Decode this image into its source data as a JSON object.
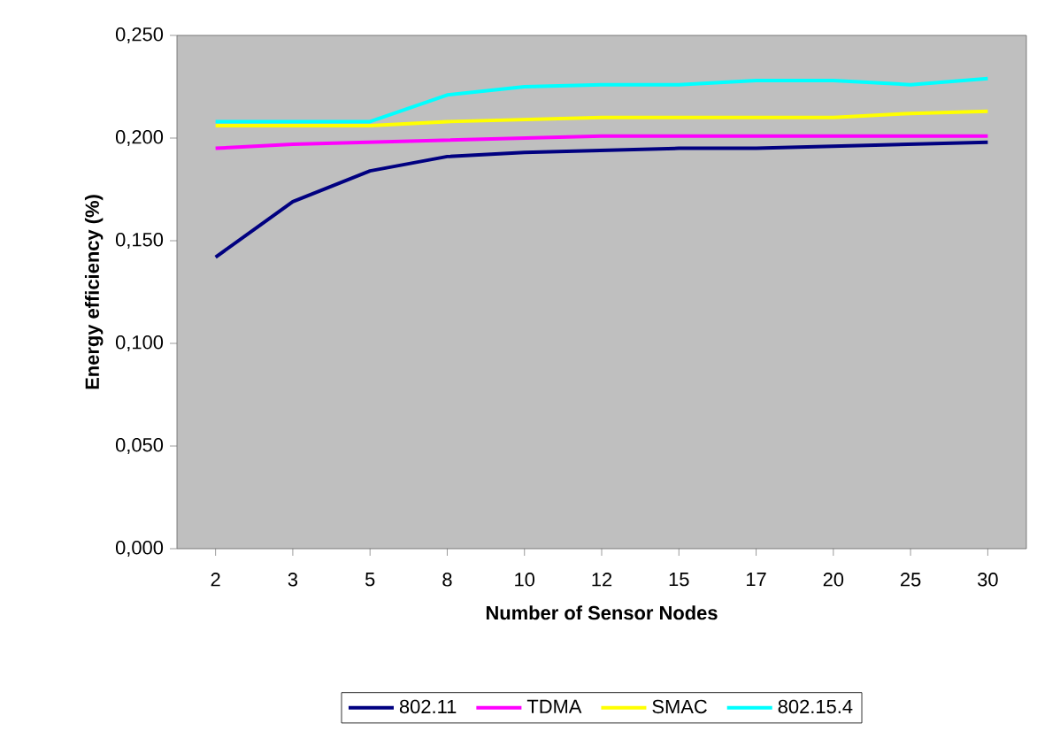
{
  "chart_data": {
    "type": "line",
    "xlabel": "Number of Sensor Nodes",
    "ylabel": "Energy efficiency (%)",
    "categories": [
      "2",
      "3",
      "5",
      "8",
      "10",
      "12",
      "15",
      "17",
      "20",
      "25",
      "30"
    ],
    "series": [
      {
        "name": "802.11",
        "color": "#000080",
        "values": [
          0.142,
          0.169,
          0.184,
          0.191,
          0.193,
          0.194,
          0.195,
          0.195,
          0.196,
          0.197,
          0.198
        ]
      },
      {
        "name": "TDMA",
        "color": "#ff00ff",
        "values": [
          0.195,
          0.197,
          0.198,
          0.199,
          0.2,
          0.201,
          0.201,
          0.201,
          0.201,
          0.201,
          0.201
        ]
      },
      {
        "name": "SMAC",
        "color": "#ffff00",
        "values": [
          0.206,
          0.206,
          0.206,
          0.208,
          0.209,
          0.21,
          0.21,
          0.21,
          0.21,
          0.212,
          0.213
        ]
      },
      {
        "name": "802.15.4",
        "color": "#00ffff",
        "values": [
          0.208,
          0.208,
          0.208,
          0.221,
          0.225,
          0.226,
          0.226,
          0.228,
          0.228,
          0.226,
          0.229
        ]
      }
    ],
    "ylim": [
      0,
      0.25
    ],
    "yticks": [
      {
        "value": 0,
        "label": "0,000"
      },
      {
        "value": 0.05,
        "label": "0,050"
      },
      {
        "value": 0.1,
        "label": "0,100"
      },
      {
        "value": 0.15,
        "label": "0,150"
      },
      {
        "value": 0.2,
        "label": "0,200"
      },
      {
        "value": 0.25,
        "label": "0,250"
      }
    ],
    "grid": false,
    "legend": "bottom",
    "marker": "none",
    "line_style": "solid"
  }
}
